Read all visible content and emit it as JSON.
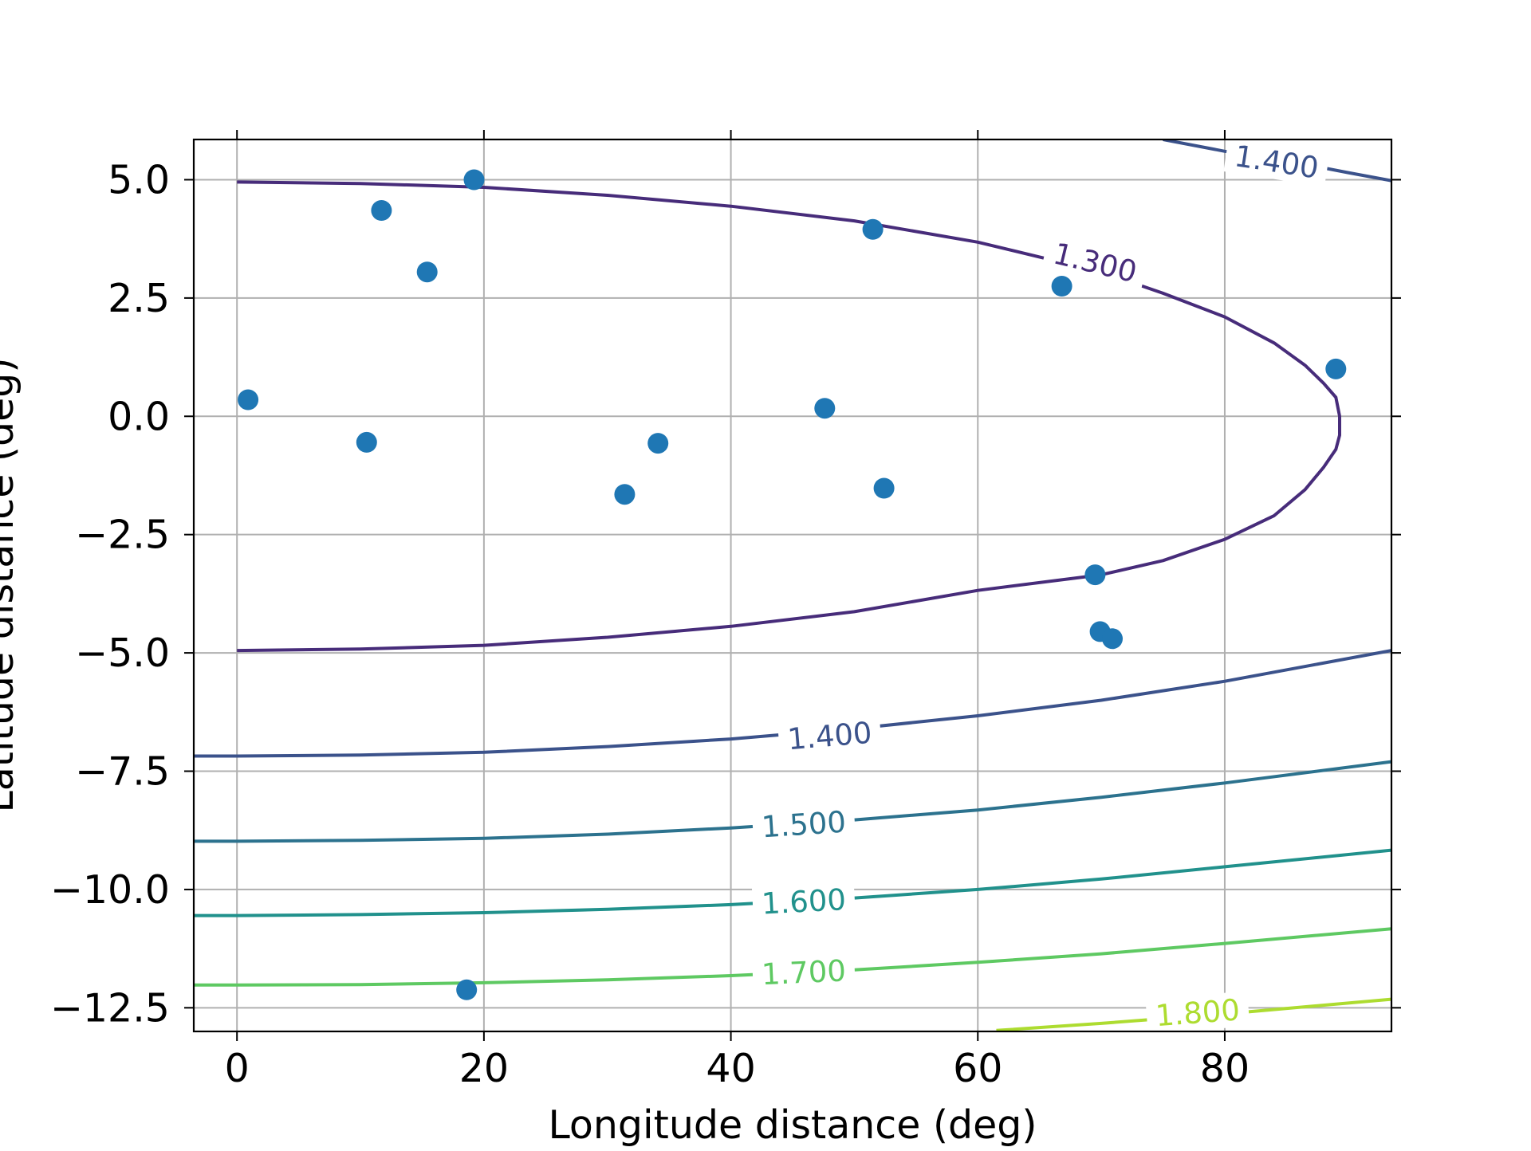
{
  "chart_data": {
    "type": "scatter",
    "title": "",
    "xlabel": "Longitude distance (deg)",
    "ylabel": "Latitude distance (deg)",
    "xlim": [
      -3.5,
      93.5
    ],
    "ylim": [
      -13.0,
      5.85
    ],
    "grid": true,
    "x_ticks": [
      0,
      20,
      40,
      60,
      80
    ],
    "x_tick_labels": [
      "0",
      "20",
      "40",
      "60",
      "80"
    ],
    "y_ticks": [
      5.0,
      2.5,
      0.0,
      -2.5,
      -5.0,
      -7.5,
      -10.0,
      -12.5
    ],
    "y_tick_labels": [
      "5.0",
      "2.5",
      "0.0",
      "−2.5",
      "−5.0",
      "−7.5",
      "−10.0",
      "−12.5"
    ],
    "points": {
      "color": "#1f77b4",
      "x": [
        0.9,
        10.5,
        11.7,
        15.4,
        18.6,
        19.2,
        31.4,
        34.1,
        47.6,
        51.5,
        52.4,
        66.8,
        69.5,
        69.9,
        70.9,
        89.0
      ],
      "y": [
        0.35,
        -0.55,
        4.35,
        3.05,
        -12.12,
        5.0,
        -1.65,
        -0.57,
        0.17,
        3.95,
        -1.52,
        2.75,
        -3.35,
        -4.55,
        -4.7,
        1.0
      ]
    },
    "contours": [
      {
        "level": "1.300",
        "color": "#472c7a",
        "label_pos": [
          69.5,
          3.25
        ],
        "x": [
          0,
          10,
          20,
          30,
          40,
          50,
          60,
          70,
          75,
          80,
          84,
          86.5,
          88,
          89,
          89.3,
          89.3,
          89,
          88,
          86.5,
          84,
          80,
          75,
          70,
          60,
          50,
          40,
          30,
          20,
          10,
          0
        ],
        "y": [
          4.95,
          4.92,
          4.84,
          4.67,
          4.44,
          4.13,
          3.68,
          3.05,
          2.6,
          2.1,
          1.55,
          1.08,
          0.7,
          0.4,
          0.0,
          -0.4,
          -0.7,
          -1.08,
          -1.55,
          -2.1,
          -2.6,
          -3.05,
          -3.35,
          -3.68,
          -4.13,
          -4.44,
          -4.67,
          -4.84,
          -4.92,
          -4.95
        ]
      },
      {
        "level": "1.400",
        "color": "#3b528b",
        "label_pos": [
          48,
          -6.75
        ],
        "x": [
          -3.5,
          0,
          10,
          20,
          30,
          40,
          50,
          60,
          70,
          80,
          93.5
        ],
        "y": [
          -7.18,
          -7.18,
          -7.16,
          -7.1,
          -6.98,
          -6.82,
          -6.6,
          -6.33,
          -6.0,
          -5.6,
          -4.95
        ]
      },
      {
        "level": "1.400",
        "color": "#3b528b",
        "label_pos": [
          84.2,
          5.38
        ],
        "x": [
          75,
          80,
          85,
          90,
          93.5
        ],
        "y": [
          5.85,
          5.6,
          5.4,
          5.15,
          4.98
        ]
      },
      {
        "level": "1.500",
        "color": "#2c728e",
        "label_pos": [
          45.9,
          -8.62
        ],
        "x": [
          -3.5,
          0,
          10,
          20,
          30,
          40,
          50,
          60,
          70,
          80,
          93.5
        ],
        "y": [
          -8.98,
          -8.98,
          -8.96,
          -8.92,
          -8.83,
          -8.7,
          -8.53,
          -8.32,
          -8.05,
          -7.75,
          -7.3
        ]
      },
      {
        "level": "1.600",
        "color": "#21918c",
        "label_pos": [
          45.9,
          -10.25
        ],
        "x": [
          -3.5,
          0,
          10,
          20,
          30,
          40,
          50,
          60,
          70,
          80,
          93.5
        ],
        "y": [
          -10.55,
          -10.55,
          -10.53,
          -10.49,
          -10.42,
          -10.32,
          -10.18,
          -10.0,
          -9.78,
          -9.52,
          -9.17
        ]
      },
      {
        "level": "1.700",
        "color": "#5ec962",
        "label_pos": [
          45.9,
          -11.75
        ],
        "x": [
          -3.5,
          0,
          10,
          20,
          30,
          40,
          50,
          60,
          70,
          80,
          93.5
        ],
        "y": [
          -12.02,
          -12.02,
          -12.01,
          -11.97,
          -11.91,
          -11.82,
          -11.7,
          -11.54,
          -11.36,
          -11.14,
          -10.83
        ]
      },
      {
        "level": "1.800",
        "color": "#addc30",
        "label_pos": [
          77.8,
          -12.6
        ],
        "x": [
          61.5,
          70,
          80,
          93.5
        ],
        "y": [
          -12.98,
          -12.83,
          -12.63,
          -12.32
        ]
      }
    ]
  }
}
